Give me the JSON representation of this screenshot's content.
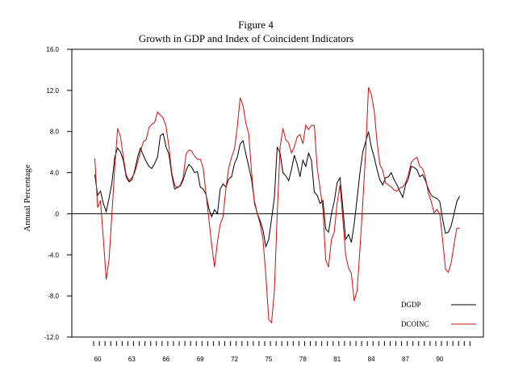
{
  "chart_data": {
    "type": "line",
    "title": "Figure 4",
    "subtitle": "Growth in GDP and Index of Coincident Indicators",
    "xlabel": "",
    "ylabel": "Annual Percentage",
    "ylim": [
      -12,
      16
    ],
    "yticks": [
      16,
      12,
      8,
      4,
      0,
      -4,
      -8,
      -12
    ],
    "ytick_labels": [
      "16.0",
      "12.0",
      "8.0",
      "4.0",
      ".0",
      "-4.0",
      "-8.0",
      "-12.0"
    ],
    "xlim": [
      1959.25,
      1993.0
    ],
    "xticks": [
      1960,
      1963,
      1966,
      1969,
      1972,
      1975,
      1978,
      1981,
      1984,
      1987,
      1990
    ],
    "xtick_labels": [
      "60",
      "63",
      "66",
      "69",
      "72",
      "75",
      "78",
      "81",
      "84",
      "87",
      "90"
    ],
    "zero_line": true,
    "grid": false,
    "legend_placement": "bottom-right",
    "x": [
      1959.75,
      1960.0,
      1960.25,
      1960.5,
      1960.75,
      1961.0,
      1961.25,
      1961.5,
      1961.75,
      1962.0,
      1962.25,
      1962.5,
      1962.75,
      1963.0,
      1963.25,
      1963.5,
      1963.75,
      1964.0,
      1964.25,
      1964.5,
      1964.75,
      1965.0,
      1965.25,
      1965.5,
      1965.75,
      1966.0,
      1966.25,
      1966.5,
      1966.75,
      1967.0,
      1967.25,
      1967.5,
      1967.75,
      1968.0,
      1968.25,
      1968.5,
      1968.75,
      1969.0,
      1969.25,
      1969.5,
      1969.75,
      1970.0,
      1970.25,
      1970.5,
      1970.75,
      1971.0,
      1971.25,
      1971.5,
      1971.75,
      1972.0,
      1972.25,
      1972.5,
      1972.75,
      1973.0,
      1973.25,
      1973.5,
      1973.75,
      1974.0,
      1974.25,
      1974.5,
      1974.75,
      1975.0,
      1975.25,
      1975.5,
      1975.75,
      1976.0,
      1976.25,
      1976.5,
      1976.75,
      1977.0,
      1977.25,
      1977.5,
      1977.75,
      1978.0,
      1978.25,
      1978.5,
      1978.75,
      1979.0,
      1979.25,
      1979.5,
      1979.75,
      1980.0,
      1980.25,
      1980.5,
      1980.75,
      1981.0,
      1981.25,
      1981.5,
      1981.75,
      1982.0,
      1982.25,
      1982.5,
      1982.75,
      1983.0,
      1983.25,
      1983.5,
      1983.75,
      1984.0,
      1984.25,
      1984.5,
      1984.75,
      1985.0,
      1985.25,
      1985.5,
      1985.75,
      1986.0,
      1986.25,
      1986.5,
      1986.75,
      1987.0,
      1987.25,
      1987.5,
      1987.75,
      1988.0,
      1988.25,
      1988.5,
      1988.75,
      1989.0,
      1989.25,
      1989.5,
      1989.75,
      1990.0,
      1990.25,
      1990.5,
      1990.75,
      1991.0,
      1991.25,
      1991.5,
      1991.75
    ],
    "series": [
      {
        "name": "DGDP",
        "color": "#000000",
        "values": [
          3.8,
          1.8,
          2.2,
          1.0,
          0.2,
          1.5,
          3.0,
          5.5,
          6.4,
          6.0,
          5.2,
          3.6,
          3.1,
          3.3,
          4.2,
          5.5,
          6.4,
          5.7,
          5.1,
          4.6,
          4.4,
          4.9,
          5.5,
          7.6,
          7.8,
          6.5,
          5.8,
          3.8,
          2.4,
          2.6,
          2.7,
          3.3,
          4.2,
          4.8,
          4.5,
          4.0,
          4.1,
          2.6,
          2.4,
          1.9,
          0.5,
          -0.3,
          0.4,
          0.0,
          2.4,
          2.9,
          2.6,
          3.4,
          3.6,
          4.9,
          5.5,
          6.8,
          7.1,
          5.8,
          4.6,
          3.3,
          1.2,
          0.0,
          -0.7,
          -1.6,
          -3.2,
          -2.5,
          -0.5,
          1.6,
          6.5,
          5.9,
          4.0,
          3.7,
          3.2,
          4.3,
          5.7,
          4.8,
          3.6,
          5.2,
          4.6,
          5.9,
          5.2,
          2.1,
          1.8,
          1.0,
          1.3,
          -1.5,
          -1.8,
          0.0,
          1.2,
          3.0,
          3.5,
          0.6,
          -2.5,
          -2.0,
          -2.8,
          -1.0,
          1.5,
          4.0,
          6.0,
          7.0,
          8.0,
          6.5,
          5.5,
          4.3,
          3.3,
          2.8,
          3.5,
          3.6,
          4.0,
          3.3,
          2.8,
          2.2,
          1.6,
          2.8,
          3.4,
          4.6,
          4.5,
          4.3,
          3.6,
          3.8,
          3.2,
          2.4,
          1.8,
          1.6,
          1.5,
          1.2,
          -0.5,
          -1.9,
          -1.8,
          -1.2,
          0.0,
          1.2,
          1.7
        ]
      },
      {
        "name": "DCOINC",
        "color": "#cc1111",
        "values": [
          5.4,
          0.6,
          1.3,
          -2.5,
          -6.4,
          -4.5,
          0.0,
          4.5,
          8.3,
          7.5,
          5.5,
          3.8,
          3.2,
          3.5,
          4.0,
          5.0,
          6.0,
          7.0,
          7.2,
          8.4,
          8.7,
          8.9,
          9.9,
          9.6,
          9.3,
          8.5,
          6.5,
          4.0,
          2.8,
          2.5,
          2.8,
          3.5,
          5.8,
          6.2,
          6.1,
          5.6,
          5.3,
          5.3,
          4.5,
          2.0,
          -0.5,
          -3.0,
          -5.2,
          -2.8,
          -1.0,
          -0.3,
          2.5,
          4.5,
          5.5,
          6.3,
          8.5,
          11.3,
          10.5,
          8.8,
          7.8,
          4.0,
          1.0,
          0.0,
          -1.0,
          -2.5,
          -6.0,
          -10.3,
          -10.6,
          -7.5,
          0.0,
          6.5,
          8.3,
          7.2,
          6.9,
          5.9,
          6.5,
          7.5,
          7.7,
          6.8,
          8.6,
          8.2,
          8.6,
          8.6,
          4.5,
          2.5,
          0.5,
          -4.5,
          -5.2,
          -2.5,
          -1.8,
          1.0,
          2.8,
          -0.5,
          -4.0,
          -5.3,
          -5.8,
          -8.5,
          -7.5,
          -3.5,
          1.0,
          6.0,
          12.3,
          11.6,
          10.0,
          7.0,
          4.8,
          4.2,
          3.0,
          2.8,
          2.6,
          2.3,
          2.2,
          2.5,
          2.6,
          3.0,
          3.8,
          5.0,
          5.3,
          5.5,
          4.6,
          4.4,
          3.5,
          2.0,
          1.2,
          0.1,
          0.4,
          0.0,
          -2.5,
          -5.4,
          -5.7,
          -4.8,
          -3.0,
          -1.4,
          -1.4
        ]
      }
    ]
  }
}
